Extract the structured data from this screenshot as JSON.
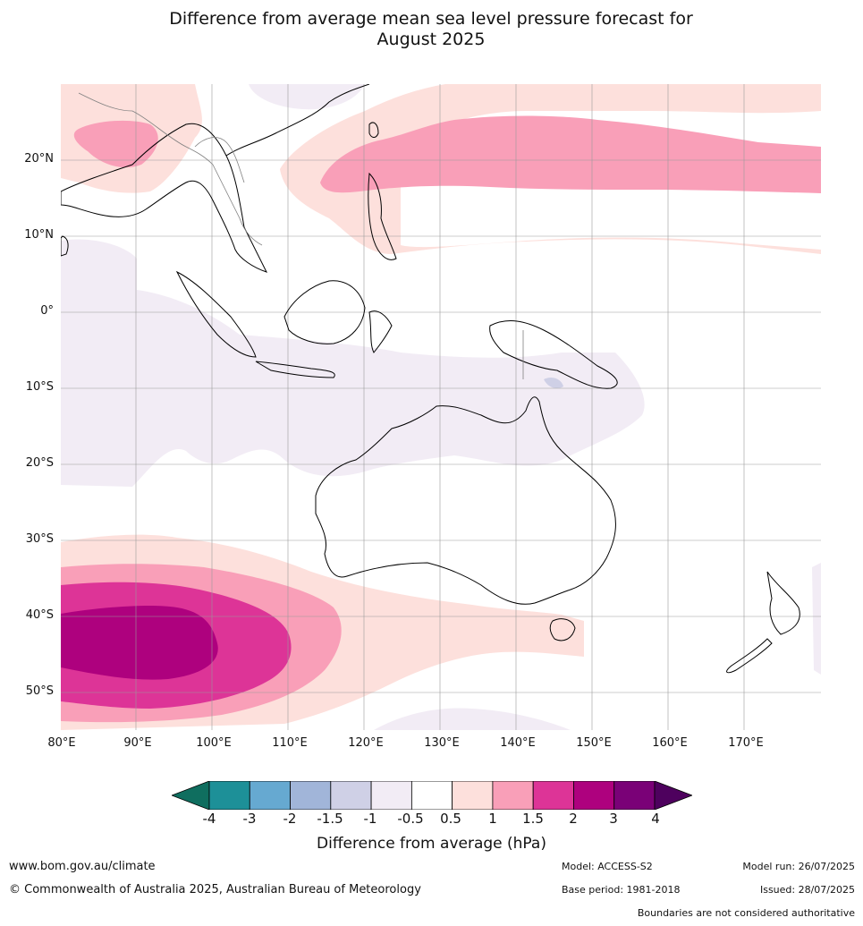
{
  "title_line1": "Difference from average mean sea level pressure forecast for",
  "title_line2": "August 2025",
  "lat_labels": [
    "20°N",
    "10°N",
    "0°",
    "10°S",
    "20°S",
    "30°S",
    "40°S",
    "50°S"
  ],
  "lon_labels": [
    "80°E",
    "90°E",
    "100°E",
    "110°E",
    "120°E",
    "130°E",
    "140°E",
    "150°E",
    "160°E",
    "170°E"
  ],
  "colorbar": {
    "colors": [
      "#0f6e5f",
      "#1d9098",
      "#66a9d1",
      "#a1b5d9",
      "#cfd0e6",
      "#f2ecf5",
      "#ffffff",
      "#fde0dc",
      "#f99fb8",
      "#dd3497",
      "#ae017e",
      "#7a0177",
      "#4e015e"
    ],
    "ticks": [
      "-4",
      "-3",
      "-2",
      "-1.5",
      "-1",
      "-0.5",
      "0.5",
      "1",
      "1.5",
      "2",
      "3",
      "4"
    ],
    "label": "Difference from average (hPa)"
  },
  "footer": {
    "url": "www.bom.gov.au/climate",
    "copyright": "© Commonwealth of Australia 2025, Australian Bureau of Meteorology",
    "model": "Model: ACCESS-S2",
    "base_period": "Base period: 1981-2018",
    "model_run": "Model run: 26/07/2025",
    "issued": "Issued: 28/07/2025",
    "disclaimer": "Boundaries are not considered authoritative"
  }
}
